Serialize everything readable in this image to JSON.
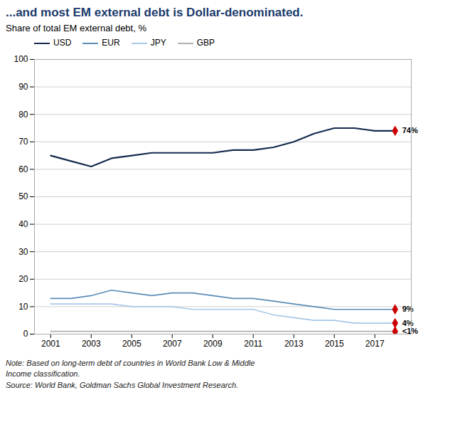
{
  "chart_data": {
    "type": "line",
    "title": "...and most EM external debt is Dollar-denominated.",
    "subtitle": "Share of total EM external debt, %",
    "note": "Note: Based on long-term debt of countries in World Bank Low & Middle\nIncome classification.\nSource: World Bank, Goldman Sachs Global Investment Research.",
    "title_color": "#1a3a6b",
    "x": [
      2001,
      2002,
      2003,
      2004,
      2005,
      2006,
      2007,
      2008,
      2009,
      2010,
      2011,
      2012,
      2013,
      2014,
      2015,
      2016,
      2017,
      2018
    ],
    "series": [
      {
        "name": "USD",
        "color": "#152a4e",
        "values": [
          65,
          63,
          61,
          64,
          65,
          66,
          66,
          66,
          66,
          67,
          67,
          68,
          70,
          73,
          75,
          75,
          74,
          74
        ]
      },
      {
        "name": "EUR",
        "color": "#5b8db8",
        "values": [
          13,
          13,
          14,
          16,
          15,
          14,
          15,
          15,
          14,
          13,
          13,
          12,
          11,
          10,
          9,
          9,
          9,
          9
        ]
      },
      {
        "name": "JPY",
        "color": "#a8c8e8",
        "values": [
          11,
          11,
          11,
          11,
          10,
          10,
          10,
          9,
          9,
          9,
          9,
          7,
          6,
          5,
          5,
          4,
          4,
          4
        ]
      },
      {
        "name": "GBP",
        "color": "#b0b0b0",
        "values": [
          1,
          1,
          1,
          1,
          1,
          1,
          1,
          1,
          1,
          1,
          1,
          1,
          1,
          1,
          1,
          1,
          1,
          1
        ]
      }
    ],
    "annotations": [
      {
        "x": 2018,
        "y": 74,
        "text": "74%",
        "marker": "diamond",
        "color": "#cc0000"
      },
      {
        "x": 2018,
        "y": 9,
        "text": "9%",
        "marker": "diamond",
        "color": "#cc0000"
      },
      {
        "x": 2018,
        "y": 4,
        "text": "4%",
        "marker": "diamond",
        "color": "#cc0000"
      },
      {
        "x": 2018,
        "y": 1,
        "text": "<1%",
        "marker": "diamond",
        "color": "#cc0000"
      }
    ],
    "xlim": [
      2000.2,
      2018.8
    ],
    "xticks": [
      2001,
      2003,
      2005,
      2007,
      2009,
      2011,
      2013,
      2015,
      2017
    ],
    "ylim": [
      0,
      100
    ],
    "yticks": [
      0,
      10,
      20,
      30,
      40,
      50,
      60,
      70,
      80,
      90,
      100
    ],
    "grid": "y",
    "legend": "upper left"
  }
}
